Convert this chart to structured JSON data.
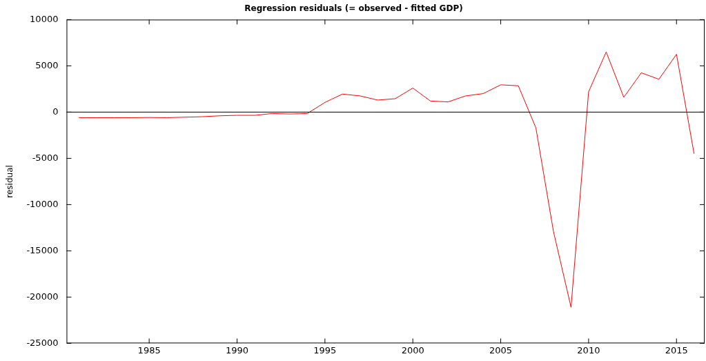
{
  "chart_data": {
    "type": "line",
    "title": "Regression residuals (= observed - fitted GDP)",
    "ylabel": "residual",
    "x": [
      1981,
      1982,
      1983,
      1984,
      1985,
      1986,
      1987,
      1988,
      1989,
      1990,
      1991,
      1992,
      1993,
      1994,
      1995,
      1996,
      1997,
      1998,
      1999,
      2000,
      2001,
      2002,
      2003,
      2004,
      2005,
      2006,
      2007,
      2008,
      2009,
      2010,
      2011,
      2012,
      2013,
      2014,
      2015,
      2016
    ],
    "series": [
      {
        "color": "#ff0000",
        "values": [
          -600,
          -600,
          -600,
          -600,
          -580,
          -600,
          -550,
          -500,
          -400,
          -350,
          -350,
          -150,
          -200,
          -150,
          1050,
          1950,
          1750,
          1300,
          1450,
          2600,
          1200,
          1100,
          1750,
          2000,
          2950,
          2850,
          -1700,
          -12900,
          -21100,
          2200,
          6500,
          1600,
          4250,
          3550,
          6250,
          -4500
        ]
      }
    ],
    "xlim": [
      1980.3,
      2016.6
    ],
    "xticks": [
      1985,
      1990,
      1995,
      2000,
      2005,
      2010,
      2015
    ],
    "ylim": [
      -25000,
      10000
    ],
    "yticks": [
      -25000,
      -20000,
      -15000,
      -10000,
      -5000,
      0,
      5000,
      10000
    ],
    "ref_lines": [
      {
        "axis": "y",
        "value": 0,
        "color": "#000000"
      }
    ],
    "grid": false,
    "legend": false,
    "marker": "none",
    "line_style": "solid"
  }
}
